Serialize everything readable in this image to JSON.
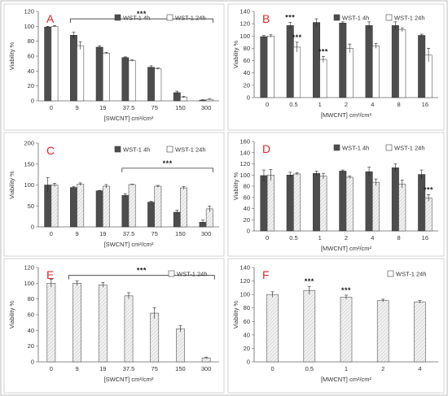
{
  "colors": {
    "dark_bar": "#4d4d4d",
    "light_bar": "#ffffff",
    "panel_letter": "#e0262a",
    "hatched_fill": "#eeeeee"
  },
  "chart_data": [
    {
      "panel": "A",
      "type": "bar",
      "categories": [
        "0",
        "9",
        "19",
        "37.5",
        "75",
        "150",
        "300"
      ],
      "series": [
        {
          "name": "WST-1 4h",
          "style": "dark",
          "values": [
            99,
            88,
            72,
            58,
            45,
            11,
            1
          ],
          "errors": [
            1,
            4,
            2,
            1,
            2,
            2,
            0.5
          ]
        },
        {
          "name": "WST-1 24h",
          "style": "open",
          "values": [
            100,
            74,
            64,
            54,
            43,
            5,
            2
          ],
          "errors": [
            1,
            5,
            1,
            1,
            1,
            1,
            0.5
          ]
        }
      ],
      "xlabel": "[SWCNT] cm²/cm²",
      "ylabel": "Viability %",
      "ylim": [
        0,
        120
      ],
      "yticks": [
        0,
        20,
        40,
        60,
        80,
        100,
        120
      ],
      "annotations": [
        {
          "type": "bracket",
          "from": 1,
          "to": 6,
          "y": 110,
          "text": "***"
        }
      ],
      "legend": "top-right"
    },
    {
      "panel": "B",
      "type": "bar",
      "categories": [
        "0",
        "0.5",
        "1",
        "2",
        "4",
        "8",
        "16"
      ],
      "series": [
        {
          "name": "WST-1 4h",
          "style": "dark",
          "values": [
            99,
            117,
            122,
            121,
            117,
            117,
            101
          ],
          "errors": [
            2,
            5,
            6,
            2,
            6,
            6,
            2
          ]
        },
        {
          "name": "WST-1 24h",
          "style": "open",
          "values": [
            100,
            82,
            62,
            80,
            84,
            110,
            69
          ],
          "errors": [
            2,
            8,
            5,
            7,
            4,
            3,
            11
          ]
        }
      ],
      "xlabel": "[MWCNT] cm²/cm²",
      "ylabel": "Viability %",
      "ylim": [
        0,
        140
      ],
      "yticks": [
        0,
        20,
        40,
        60,
        80,
        100,
        120,
        140
      ],
      "annotations": [
        {
          "type": "star",
          "category": 1,
          "series": 0,
          "text": "***"
        },
        {
          "type": "star",
          "category": 1,
          "series": 1,
          "text": "***"
        },
        {
          "type": "star",
          "category": 2,
          "series": 1,
          "text": "***"
        }
      ],
      "legend": "top-right"
    },
    {
      "panel": "C",
      "type": "bar",
      "categories": [
        "0",
        "9",
        "19",
        "37.5",
        "75",
        "150",
        "300"
      ],
      "series": [
        {
          "name": "WST-1 4h",
          "style": "dark",
          "values": [
            100,
            94,
            86,
            75,
            59,
            35,
            11
          ],
          "errors": [
            18,
            2,
            1,
            4,
            2,
            5,
            5
          ]
        },
        {
          "name": "WST-1 24h",
          "style": "hatched",
          "values": [
            100,
            102,
            97,
            101,
            97,
            93,
            43
          ],
          "errors": [
            4,
            3,
            4,
            1,
            2,
            3,
            7
          ]
        }
      ],
      "xlabel": "[SWCNT] cm²/cm²",
      "ylabel": "Viability %",
      "ylim": [
        0,
        200
      ],
      "yticks": [
        0,
        50,
        100,
        150,
        200
      ],
      "annotations": [
        {
          "type": "bracket",
          "from": 3,
          "to": 6,
          "y": 140,
          "text": "***"
        }
      ],
      "legend": "top-right"
    },
    {
      "panel": "D",
      "type": "bar",
      "categories": [
        "0",
        "0.5",
        "1",
        "2",
        "4",
        "8",
        "16"
      ],
      "series": [
        {
          "name": "WST-1 4h",
          "style": "dark",
          "values": [
            99,
            100,
            103,
            107,
            106,
            113,
            101
          ],
          "errors": [
            10,
            5,
            4,
            2,
            8,
            7,
            8
          ]
        },
        {
          "name": "WST-1 24h",
          "style": "hatched",
          "values": [
            100,
            102,
            98,
            96,
            87,
            84,
            59
          ],
          "errors": [
            10,
            2,
            5,
            2,
            6,
            7,
            6
          ]
        }
      ],
      "xlabel": "[MWCNT] cm²/cm²",
      "ylabel": "Viability %",
      "ylim": [
        0,
        160
      ],
      "yticks": [
        0,
        20,
        40,
        60,
        80,
        100,
        120,
        140,
        160
      ],
      "annotations": [
        {
          "type": "star",
          "category": 6,
          "series": 1,
          "text": "***"
        }
      ],
      "legend": "top-right"
    },
    {
      "panel": "E",
      "type": "bar",
      "categories": [
        "0",
        "9",
        "19",
        "37.5",
        "75",
        "150",
        "300"
      ],
      "series": [
        {
          "name": "WST-1 24h",
          "style": "hatched",
          "values": [
            100,
            100,
            98,
            84,
            62,
            42,
            5
          ],
          "errors": [
            5,
            3,
            3,
            4,
            7,
            4,
            1
          ]
        }
      ],
      "xlabel": "[SWCNT] cm²/cm²",
      "ylabel": "Viability %",
      "ylim": [
        0,
        120
      ],
      "yticks": [
        0,
        20,
        40,
        60,
        80,
        100,
        120
      ],
      "annotations": [
        {
          "type": "bracket",
          "from": 1,
          "to": 6,
          "y": 110,
          "text": "***"
        }
      ],
      "legend": "top-right"
    },
    {
      "panel": "F",
      "type": "bar",
      "categories": [
        "0",
        "0.5",
        "1",
        "2",
        "4"
      ],
      "series": [
        {
          "name": "WST-1 24h",
          "style": "hatched",
          "values": [
            100,
            106,
            96,
            91,
            89
          ],
          "errors": [
            4,
            6,
            3,
            2,
            2
          ]
        }
      ],
      "xlabel": "[MWCNT] cm²/cm²",
      "ylabel": "Viability %",
      "ylim": [
        0,
        140
      ],
      "yticks": [
        0,
        20,
        40,
        60,
        80,
        100,
        120,
        140
      ],
      "annotations": [
        {
          "type": "star",
          "category": 1,
          "series": 0,
          "text": "***"
        },
        {
          "type": "star",
          "category": 2,
          "series": 0,
          "text": "***"
        }
      ],
      "legend": "top-right"
    }
  ]
}
